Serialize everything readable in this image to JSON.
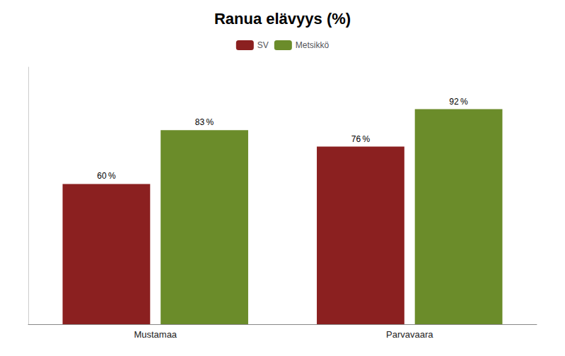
{
  "chart_data": {
    "type": "bar",
    "title": "Ranua elävyys (%)",
    "categories": [
      "Mustamaa",
      "Parvavaara"
    ],
    "series": [
      {
        "name": "SV",
        "color": "#8B2020",
        "values": [
          60,
          76
        ],
        "value_labels": [
          "60 %",
          "76 %"
        ]
      },
      {
        "name": "Metsikkö",
        "color": "#6B8C2A",
        "values": [
          83,
          92
        ],
        "value_labels": [
          "83 %",
          "92 %"
        ]
      }
    ],
    "ylim": [
      0,
      110
    ],
    "grid": false,
    "legend": "top",
    "data_labels": true,
    "tick_labels": "x"
  }
}
